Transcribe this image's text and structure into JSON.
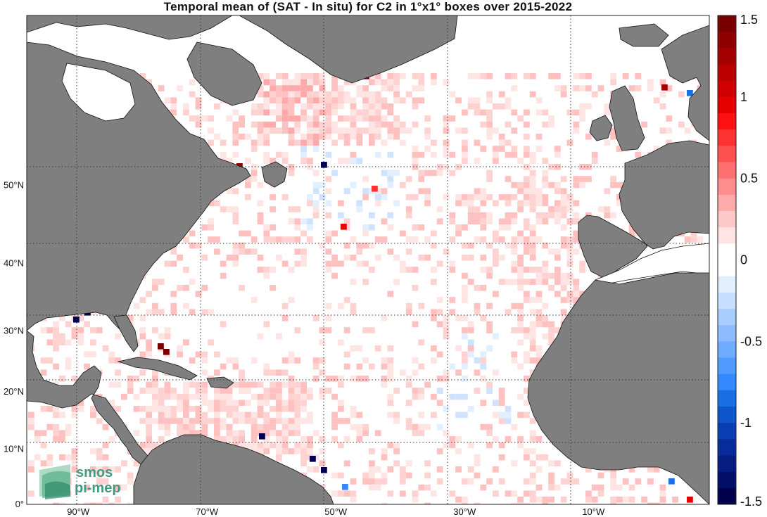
{
  "title": "Temporal mean of (SAT - In situ) for C2 in 1°x1° boxes over 2015-2022",
  "map": {
    "lon_range": [
      -98,
      8
    ],
    "lat_range": [
      0,
      66
    ],
    "lon_ticks": [
      {
        "value": -90,
        "label": "90°W"
      },
      {
        "value": -70,
        "label": "70°W"
      },
      {
        "value": -50,
        "label": "50°W"
      },
      {
        "value": -30,
        "label": "30°W"
      },
      {
        "value": -10,
        "label": "10°W"
      }
    ],
    "lat_ticks": [
      {
        "value": 0,
        "label": "0°"
      },
      {
        "value": 10,
        "label": "10°N"
      },
      {
        "value": 20,
        "label": "20°N"
      },
      {
        "value": 30,
        "label": "30°N"
      },
      {
        "value": 40,
        "label": "40°N"
      },
      {
        "value": 50,
        "label": "50°N"
      }
    ],
    "land_color": "#7f7f7f",
    "grid": "dotted"
  },
  "colorbar": {
    "range": [
      -1.5,
      1.5
    ],
    "ticks": [
      {
        "value": 1.5,
        "label": "1.5"
      },
      {
        "value": 1,
        "label": "1"
      },
      {
        "value": 0.5,
        "label": "0.5"
      },
      {
        "value": 0,
        "label": "0"
      },
      {
        "value": -0.5,
        "label": "-0.5"
      },
      {
        "value": -1,
        "label": "-1"
      },
      {
        "value": -1.5,
        "label": "-1.5"
      }
    ],
    "colors_top_to_bottom": [
      "#7a0000",
      "#8f0000",
      "#a50000",
      "#bb0000",
      "#d00000",
      "#e60000",
      "#ff1010",
      "#ff3232",
      "#ff5050",
      "#ff6f6f",
      "#ff8d8d",
      "#ffabab",
      "#ffc8c8",
      "#ffe4e4",
      "#ffffff",
      "#ffffff",
      "#e2efff",
      "#c6deff",
      "#a9cdff",
      "#8cbcff",
      "#6fabff",
      "#519aff",
      "#3489ff",
      "#1a6fe6",
      "#0f56cc",
      "#0a3fb3",
      "#072c99",
      "#051c80",
      "#020f66",
      "#00004c"
    ]
  },
  "logo": {
    "line1": "smos",
    "line2": "pi-mep"
  }
}
